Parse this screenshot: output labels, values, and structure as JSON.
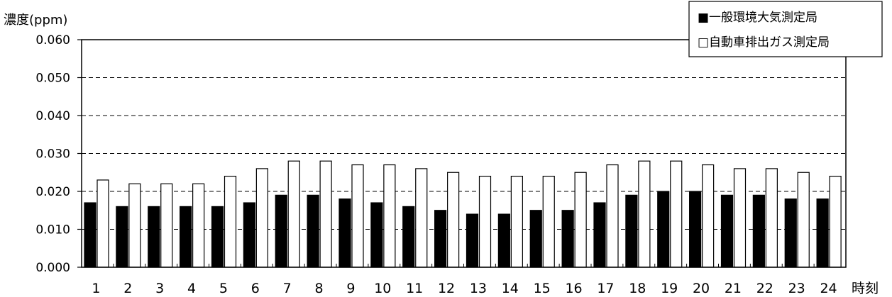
{
  "chart_data": {
    "type": "bar",
    "ylabel": "濃度(ppm)",
    "xlabel": "時刻",
    "ylim": [
      0,
      0.06
    ],
    "yticks": [
      "0.000",
      "0.010",
      "0.020",
      "0.030",
      "0.040",
      "0.050",
      "0.060"
    ],
    "grid": true,
    "legend_position": "top-right",
    "categories": [
      "1",
      "2",
      "3",
      "4",
      "5",
      "6",
      "7",
      "8",
      "9",
      "10",
      "11",
      "12",
      "13",
      "14",
      "15",
      "16",
      "17",
      "18",
      "19",
      "20",
      "21",
      "22",
      "23",
      "24"
    ],
    "series": [
      {
        "name": "一般環境大気測定局",
        "legend_label": "■一般環境大気測定局",
        "color": "#000000",
        "values": [
          0.017,
          0.016,
          0.016,
          0.016,
          0.016,
          0.017,
          0.019,
          0.019,
          0.018,
          0.017,
          0.016,
          0.015,
          0.014,
          0.014,
          0.015,
          0.015,
          0.017,
          0.019,
          0.02,
          0.02,
          0.019,
          0.019,
          0.018,
          0.018
        ]
      },
      {
        "name": "自動車排出ガス測定局",
        "legend_label": "□自動車排出ガス測定局",
        "color": "#ffffff",
        "values": [
          0.023,
          0.022,
          0.022,
          0.022,
          0.024,
          0.026,
          0.028,
          0.028,
          0.027,
          0.027,
          0.026,
          0.025,
          0.024,
          0.024,
          0.024,
          0.025,
          0.027,
          0.028,
          0.028,
          0.027,
          0.026,
          0.026,
          0.025,
          0.024
        ]
      }
    ]
  }
}
